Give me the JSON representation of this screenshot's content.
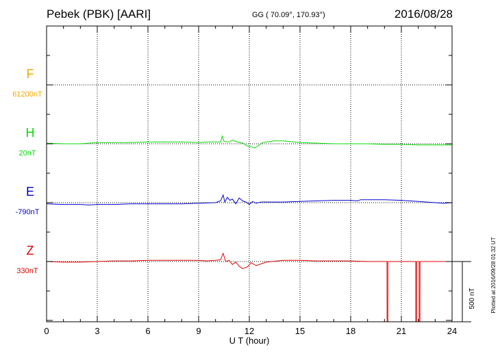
{
  "header": {
    "station": "Pebek (PBK)  [AARI]",
    "coords": "GG ( 70.09°, 170.93°)",
    "date": "2016/08/28"
  },
  "side_note": "Plotted at 2016/09/28 01:32 UT",
  "chart_data": {
    "type": "line",
    "title": "Pebek (PBK)  [AARI]",
    "xlabel": "U T (hour)",
    "xlim": [
      0,
      24
    ],
    "xticks": [
      "0",
      "3",
      "6",
      "9",
      "12",
      "15",
      "18",
      "21",
      "24"
    ],
    "grid": true,
    "scale_bar": {
      "label": "500 nT",
      "value_nT": 500
    },
    "nT_per_row": 100,
    "channels": [
      {
        "name": "F",
        "baseline": "61200nT",
        "color": "#f0a800",
        "row": 1,
        "x": [],
        "y": []
      },
      {
        "name": "H",
        "baseline": "20nT",
        "color": "#00dd00",
        "row": 2,
        "x": [
          0,
          1,
          2,
          2.5,
          3,
          4,
          5,
          6,
          7,
          8,
          9,
          9.5,
          10,
          10.3,
          10.4,
          10.5,
          10.8,
          11,
          11.3,
          11.6,
          11.9,
          12.1,
          12.3,
          12.5,
          12.8,
          13,
          13.5,
          14,
          15,
          16,
          17,
          18,
          19,
          20,
          21,
          22,
          23,
          24
        ],
        "y": [
          1,
          0,
          0,
          1,
          2,
          2,
          2,
          3,
          3,
          3,
          2,
          3,
          3,
          3,
          13,
          4,
          3,
          6,
          3,
          1,
          -4,
          -5,
          -7,
          -4,
          2,
          3,
          5,
          5,
          2,
          1,
          0,
          0,
          0,
          -1,
          -1,
          -2,
          -2,
          -2
        ]
      },
      {
        "name": "E",
        "baseline": "-790nT",
        "color": "#0000cc",
        "row": 3,
        "x": [
          0,
          1,
          2,
          2.5,
          3,
          4,
          5,
          6,
          7,
          8,
          9,
          10,
          10.3,
          10.45,
          10.55,
          10.7,
          10.85,
          11,
          11.2,
          11.4,
          11.6,
          11.8,
          12,
          12.2,
          12.4,
          12.7,
          13,
          14,
          15,
          16,
          17,
          18,
          18.4,
          18.6,
          19,
          20,
          21,
          22,
          23,
          23.5,
          24
        ],
        "y": [
          -2,
          -3,
          -3,
          -4,
          -3,
          -3,
          -2,
          -2,
          -2,
          -2,
          -1,
          0,
          3,
          13,
          1,
          9,
          4,
          6,
          -2,
          8,
          3,
          1,
          -3,
          2,
          -1,
          1,
          1,
          1,
          2,
          3,
          4,
          4,
          3,
          5,
          5,
          5,
          4,
          2,
          0,
          -1,
          0
        ]
      },
      {
        "name": "Z",
        "baseline": "330nT",
        "color": "#dd0000",
        "row": 4,
        "x": [
          0,
          1,
          2,
          3,
          4,
          5,
          6,
          7,
          8,
          9,
          9.5,
          10,
          10.3,
          10.45,
          10.6,
          10.8,
          11,
          11.2,
          11.4,
          11.6,
          11.9,
          12.1,
          12.4,
          12.7,
          13,
          14,
          15,
          16,
          17,
          18,
          19,
          20,
          20.15,
          20.151,
          20.2,
          20.201,
          21,
          21.85,
          21.851,
          21.9,
          21.901,
          22.05,
          22.051,
          22.1,
          22.101,
          23,
          24
        ],
        "y": [
          0,
          -1,
          -1,
          0,
          1,
          1,
          2,
          2,
          2,
          2,
          1,
          2,
          3,
          14,
          0,
          2,
          -5,
          -1,
          -8,
          -12,
          -9,
          -2,
          -7,
          -4,
          -1,
          2,
          2,
          1,
          1,
          1,
          0,
          0,
          0,
          -113,
          -113,
          0,
          0,
          0,
          -113,
          -113,
          0,
          0,
          -113,
          -113,
          0,
          0,
          0
        ]
      }
    ]
  }
}
